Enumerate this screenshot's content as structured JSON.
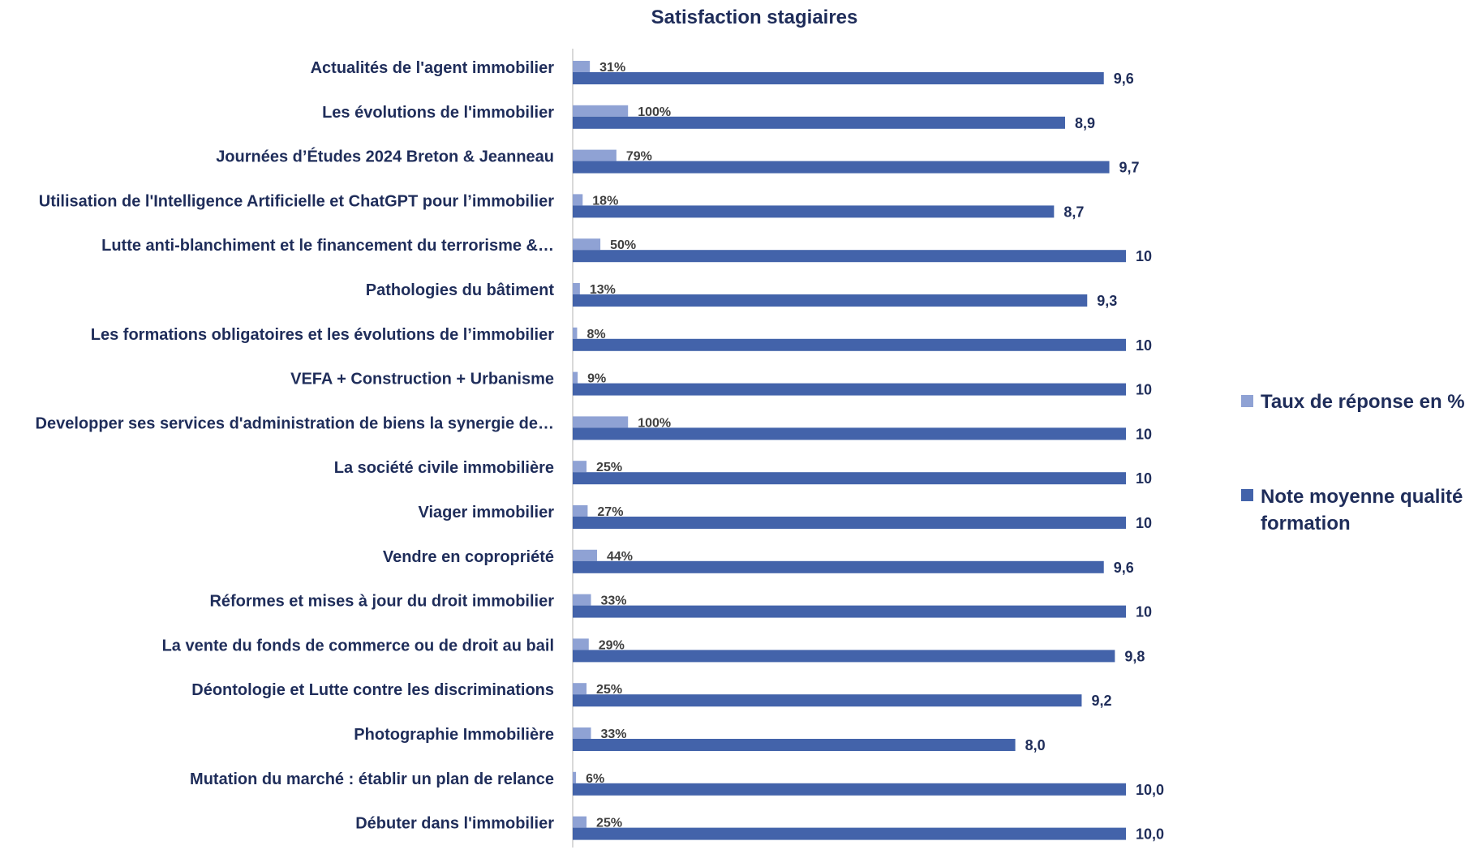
{
  "chart_data": {
    "type": "bar",
    "orientation": "horizontal",
    "title": "Satisfaction stagiaires",
    "categories": [
      "Actualités de l'agent immobilier",
      "Les évolutions de l'immobilier",
      "Journées d’Études 2024 Breton & Jeanneau",
      "Utilisation de l'Intelligence Artificielle et ChatGPT pour l’immobilier",
      "Lutte anti-blanchiment et le financement du terrorisme &…",
      "Pathologies du bâtiment",
      "Les formations obligatoires et les évolutions de l’immobilier",
      "VEFA + Construction + Urbanisme",
      "Developper ses services d'administration de biens la synergie de…",
      "La société civile immobilière",
      "Viager immobilier",
      "Vendre en copropriété",
      "Réformes et mises à jour du droit immobilier",
      "La vente du fonds de commerce ou de droit au bail",
      "Déontologie et Lutte contre les discriminations",
      "Photographie Immobilière",
      "Mutation du marché : établir un plan de relance",
      "Débuter dans l'immobilier"
    ],
    "series": [
      {
        "name": "Taux de réponse en %",
        "color": "#8fa2d4",
        "values": [
          0.31,
          1.0,
          0.79,
          0.18,
          0.5,
          0.13,
          0.08,
          0.09,
          1.0,
          0.25,
          0.27,
          0.44,
          0.33,
          0.29,
          0.25,
          0.33,
          0.06,
          0.25
        ],
        "labels": [
          "31%",
          "100%",
          "79%",
          "18%",
          "50%",
          "13%",
          "8%",
          "9%",
          "100%",
          "25%",
          "27%",
          "44%",
          "33%",
          "29%",
          "25%",
          "33%",
          "6%",
          "25%"
        ]
      },
      {
        "name": "Note moyenne qualité formation",
        "color": "#4363aa",
        "values": [
          9.6,
          8.9,
          9.7,
          8.7,
          10,
          9.3,
          10,
          10,
          10,
          10,
          10,
          9.6,
          10,
          9.8,
          9.2,
          8.0,
          10.0,
          10.0
        ],
        "labels": [
          "9,6",
          "8,9",
          "9,7",
          "8,7",
          "10",
          "9,3",
          "10",
          "10",
          "10",
          "10",
          "10",
          "9,6",
          "10",
          "9,8",
          "9,2",
          "8,0",
          "10,0",
          "10,0"
        ]
      }
    ],
    "xlim": [
      0,
      10
    ],
    "grid": false,
    "legend": "right",
    "legend_entries": [
      "Taux de réponse en %",
      "Note moyenne qualité formation"
    ]
  }
}
